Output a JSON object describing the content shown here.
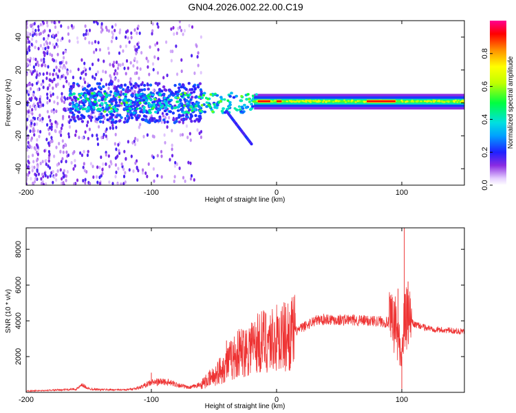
{
  "title": "GN04.2026.002.22.00.C19",
  "chart_data": [
    {
      "type": "heatmap",
      "xlabel": "Height of straight line (km)",
      "ylabel": "Frequency (Hz)",
      "xlim": [
        -200,
        150
      ],
      "ylim": [
        -50,
        50
      ],
      "xticks": [
        -200,
        -100,
        0,
        100
      ],
      "yticks": [
        -40,
        -20,
        0,
        20,
        40
      ],
      "colorbar": {
        "label": "Normalized spectral amplitude",
        "range": [
          0,
          1
        ],
        "ticks": [
          0.0,
          0.2,
          0.4,
          0.6,
          0.8
        ]
      },
      "features": {
        "carrier_line_hz": 1,
        "carrier_band_x": [
          -18,
          150
        ],
        "strong_segments_x": [
          [
            -15,
            -5
          ],
          [
            0,
            4
          ],
          [
            72,
            95
          ]
        ],
        "scatter_region_x": [
          -200,
          -60
        ],
        "descending_branch_x": [
          -40,
          -20
        ],
        "descending_branch_hz": [
          -5,
          -25
        ]
      }
    },
    {
      "type": "line",
      "xlabel": "Height of straight line (km)",
      "ylabel": "SNR (10 * v/v)",
      "xlim": [
        -200,
        150
      ],
      "ylim": [
        0,
        9200
      ],
      "xticks": [
        -200,
        -100,
        0,
        100
      ],
      "yticks": [
        2000,
        4000,
        6000,
        8000
      ],
      "color": "#ee3333",
      "series": [
        {
          "x": [
            -200,
            -185,
            -170,
            -160,
            -155,
            -150,
            -140,
            -120,
            -110,
            -100,
            -90,
            -80,
            -70,
            -60,
            -50,
            -40,
            -30,
            -20,
            -10,
            0,
            10,
            20,
            30,
            40,
            50,
            60,
            70,
            80,
            90,
            95,
            100,
            102,
            105,
            110,
            120,
            130,
            140,
            150
          ],
          "values": [
            80,
            100,
            150,
            180,
            400,
            200,
            150,
            140,
            250,
            550,
            600,
            450,
            250,
            450,
            900,
            1600,
            2200,
            2600,
            2900,
            3000,
            3200,
            3600,
            4000,
            4100,
            4050,
            4050,
            4000,
            4000,
            3900,
            3800,
            2000,
            4000,
            4100,
            3800,
            3600,
            3500,
            3450,
            3400
          ]
        }
      ],
      "spikes": [
        {
          "x": -100,
          "value": 1100
        },
        {
          "x": -40,
          "value": 2900
        },
        {
          "x": -20,
          "value": 3900
        },
        {
          "x": -10,
          "value": 4500
        },
        {
          "x": 97,
          "value": 5800
        },
        {
          "x": 100,
          "value": 200
        },
        {
          "x": 102,
          "value": 9200
        },
        {
          "x": 105,
          "value": 6200
        }
      ]
    }
  ]
}
